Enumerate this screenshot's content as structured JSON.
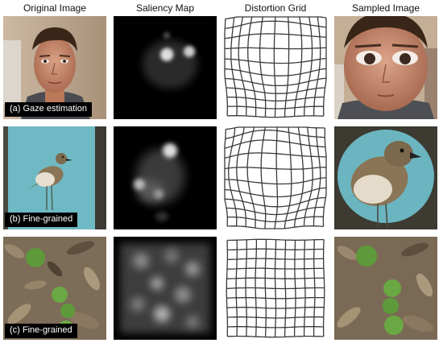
{
  "column_headers": [
    "Original Image",
    "Saliency Map",
    "Distortion Grid",
    "Sampled Image"
  ],
  "rows": [
    {
      "label": "(a) Gaze estimation",
      "subject": "face"
    },
    {
      "label": "(b) Fine-grained",
      "subject": "bird"
    },
    {
      "label": "(c) Fine-grained",
      "subject": "leaves"
    }
  ]
}
